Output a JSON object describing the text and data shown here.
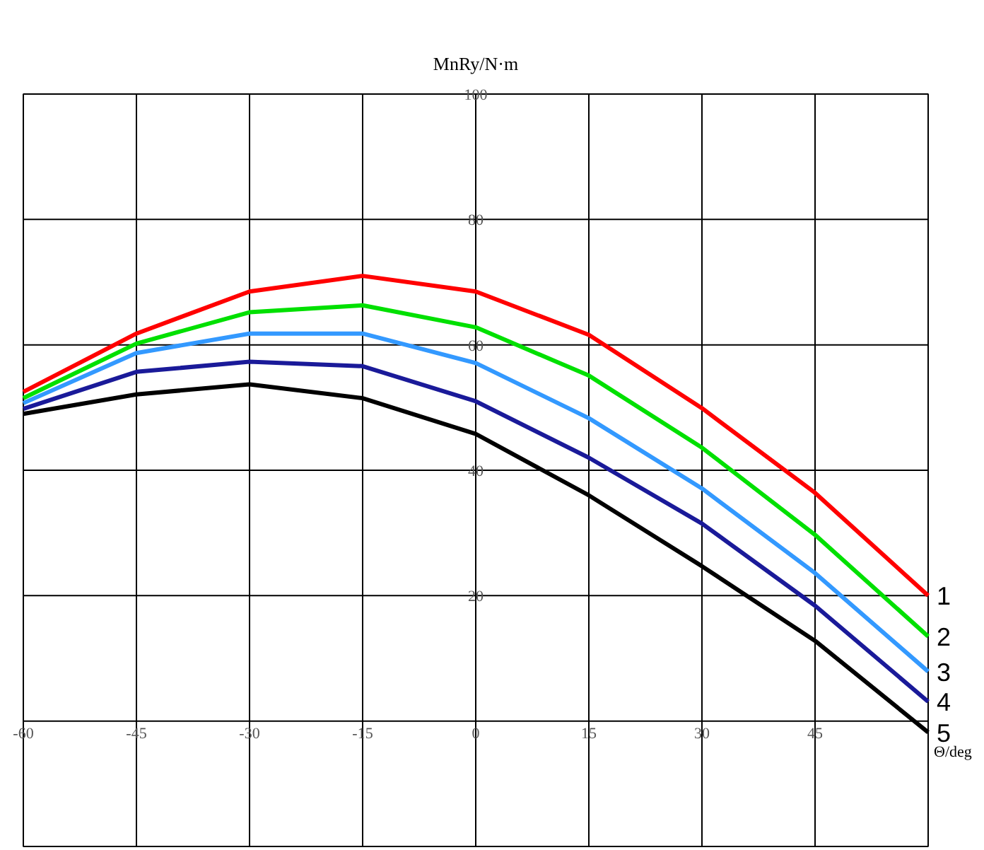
{
  "chart_data": {
    "type": "line",
    "xlabel": "Θ/deg",
    "ylabel": "MnRy/N·m",
    "x": [
      -60,
      -45,
      -30,
      -15,
      0,
      15,
      30,
      45,
      60
    ],
    "series": [
      {
        "name": "1",
        "color": "#ff0000",
        "values": [
          52.5,
          61.8,
          68.5,
          71,
          68.5,
          61.6,
          49.9,
          36.4,
          20
        ]
      },
      {
        "name": "2",
        "color": "#00e000",
        "values": [
          51.5,
          60.2,
          65.2,
          66.3,
          62.8,
          55.1,
          43.6,
          29.7,
          13.5
        ]
      },
      {
        "name": "3",
        "color": "#3399ff",
        "values": [
          50.7,
          58.7,
          61.8,
          61.8,
          57.1,
          48.3,
          37.1,
          23.6,
          7.9
        ]
      },
      {
        "name": "4",
        "color": "#1a1a99",
        "values": [
          49.8,
          55.7,
          57.3,
          56.6,
          51,
          42,
          31.5,
          18.4,
          3.1
        ]
      },
      {
        "name": "5",
        "color": "#000000",
        "values": [
          49,
          52.1,
          53.7,
          51.5,
          45.8,
          36,
          24.7,
          12.8,
          -1.8
        ]
      }
    ],
    "xlim": [
      -60,
      60
    ],
    "ylim": [
      -20,
      100
    ],
    "xticks": [
      -60,
      -45,
      -30,
      -15,
      0,
      15,
      30,
      45
    ],
    "yticks": [
      {
        "value": -20,
        "label": null
      },
      {
        "value": 0,
        "label": null
      },
      20,
      40,
      60,
      80,
      100
    ],
    "grid": true,
    "marker": "none",
    "line_style": "solid"
  }
}
